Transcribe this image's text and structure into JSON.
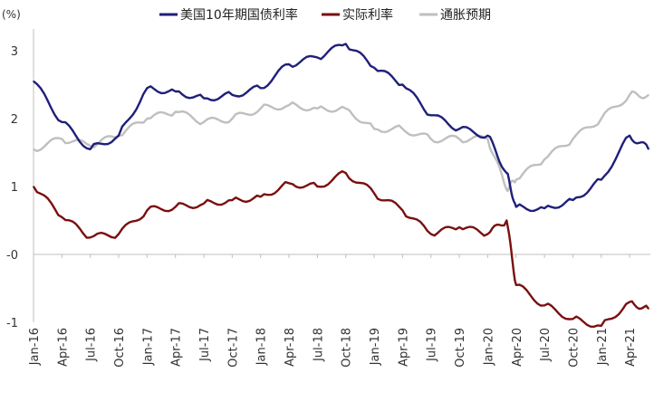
{
  "chart_data": {
    "type": "line",
    "unit_label": "(%)",
    "legend_position": "top",
    "grid": false,
    "ylim": [
      -1,
      3.6
    ],
    "y_ticks": [
      {
        "value": 3,
        "label": "3",
        "color": "#333333"
      },
      {
        "value": 2,
        "label": "2",
        "color": "#333333"
      },
      {
        "value": 1,
        "label": "1",
        "color": "#333333"
      },
      {
        "value": 0,
        "label": "-0",
        "color": "#c00000"
      },
      {
        "value": -1,
        "label": "-1",
        "color": "#333333"
      }
    ],
    "x_ticks": [
      "Jan-16",
      "Apr-16",
      "Jul-16",
      "Oct-16",
      "Jan-17",
      "Apr-17",
      "Jul-17",
      "Oct-17",
      "Jan-18",
      "Apr-18",
      "Jul-18",
      "Oct-18",
      "Jan-19",
      "Apr-19",
      "Jul-19",
      "Oct-19",
      "Jan-20",
      "Apr-20",
      "Jul-20",
      "Oct-20",
      "Jan-21",
      "Apr-21"
    ],
    "x": [
      "2016-01",
      "2016-04",
      "2016-07",
      "2016-10",
      "2017-01",
      "2017-04",
      "2017-07",
      "2017-10",
      "2018-01",
      "2018-04",
      "2018-07",
      "2018-10",
      "2019-01",
      "2019-04",
      "2019-07",
      "2019-10",
      "2020-01",
      "2020-03",
      "2020-04",
      "2020-07",
      "2020-10",
      "2021-01",
      "2021-04",
      "2021-06"
    ],
    "series": [
      {
        "name": "美国10年期国债利率",
        "color": "#1f1f7a",
        "values": [
          2.55,
          1.95,
          1.55,
          1.75,
          2.45,
          2.4,
          2.3,
          2.35,
          2.45,
          2.8,
          2.9,
          3.1,
          2.75,
          2.5,
          2.05,
          1.85,
          1.75,
          1.2,
          0.7,
          0.68,
          0.8,
          1.1,
          1.75,
          1.55
        ]
      },
      {
        "name": "实际利率",
        "color": "#7a0f0f",
        "values": [
          1.0,
          0.55,
          0.25,
          0.3,
          0.65,
          0.7,
          0.75,
          0.8,
          0.85,
          1.05,
          1.0,
          1.2,
          0.9,
          0.65,
          0.3,
          0.4,
          0.3,
          0.5,
          -0.45,
          -0.75,
          -0.95,
          -1.05,
          -0.7,
          -0.8
        ]
      },
      {
        "name": "通胀预期",
        "color": "#bfbfbf",
        "values": [
          1.55,
          1.7,
          1.6,
          1.75,
          2.0,
          2.1,
          1.95,
          2.0,
          2.15,
          2.2,
          2.15,
          2.15,
          1.85,
          1.85,
          1.7,
          1.7,
          1.7,
          0.95,
          1.1,
          1.4,
          1.7,
          2.0,
          2.35,
          2.35
        ]
      }
    ]
  }
}
